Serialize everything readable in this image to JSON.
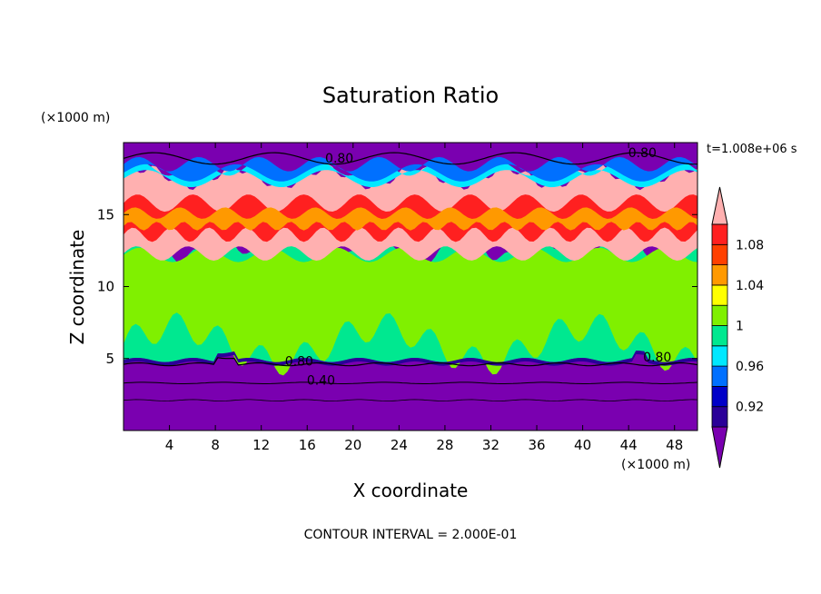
{
  "chart_data": {
    "type": "heatmap",
    "title": "Saturation Ratio",
    "xlabel": "X coordinate",
    "ylabel": "Z coordinate",
    "x_unit": "(×1000 m)",
    "y_unit": "(×1000 m)",
    "time_label": "t=1.008e+06 s",
    "footer": "CONTOUR INTERVAL = 2.000E-01",
    "xlim": [
      0,
      50
    ],
    "ylim": [
      0,
      20
    ],
    "x_ticks": [
      4,
      8,
      12,
      16,
      20,
      24,
      28,
      32,
      36,
      40,
      44,
      48
    ],
    "y_ticks": [
      5,
      10,
      15
    ],
    "colorbar": {
      "levels": [
        0.92,
        0.94,
        0.96,
        0.98,
        1.0,
        1.02,
        1.04,
        1.06,
        1.08,
        1.1
      ],
      "tick_labels": [
        "0.92",
        "0.96",
        "1",
        "1.04",
        "1.08"
      ],
      "colors": [
        "#7a00b0",
        "#2a0098",
        "#0000c8",
        "#0070ff",
        "#00e8ff",
        "#00e890",
        "#80f000",
        "#ffff00",
        "#ff9900",
        "#ff4000",
        "#ff2020",
        "#ffb0b0"
      ]
    },
    "contour_labels": [
      "0.80",
      "0.80",
      "0.80",
      "0.80",
      "0.40"
    ],
    "contour_label_positions": [
      [
        18.8,
        18.6
      ],
      [
        45.2,
        19.0
      ],
      [
        15.3,
        4.5
      ],
      [
        46.5,
        4.8
      ],
      [
        17.2,
        3.2
      ]
    ],
    "layers": [
      {
        "z_range": [
          0,
          5
        ],
        "ratio": "< 0.92"
      },
      {
        "z_range": [
          5,
          12
        ],
        "ratio": "0.98 - 1.02"
      },
      {
        "z_range": [
          12,
          17
        ],
        "ratio": "1.02 - 1.10"
      },
      {
        "z_range": [
          17,
          20
        ],
        "ratio": "< 0.92"
      }
    ]
  }
}
